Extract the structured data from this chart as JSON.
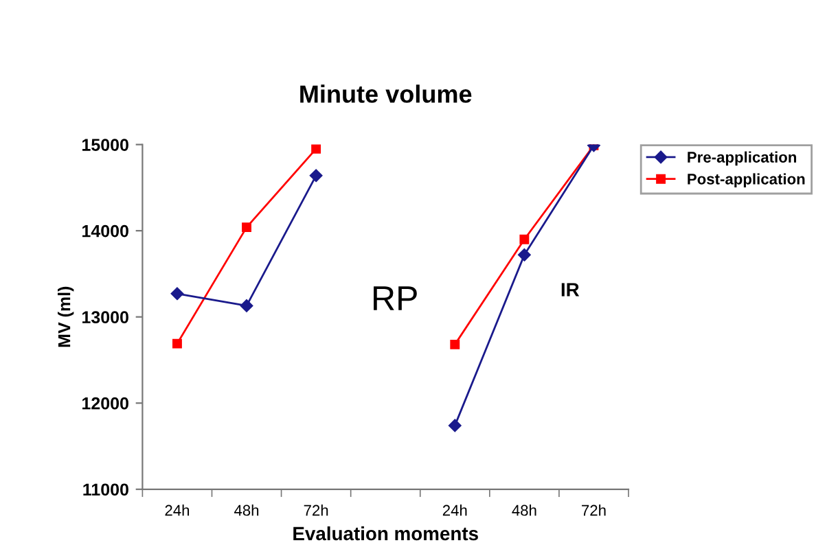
{
  "chart_data": {
    "type": "line",
    "title": "Minute volume",
    "xlabel": "Evaluation moments",
    "ylabel": "MV (ml)",
    "categories": [
      "24h",
      "48h",
      "72h",
      null,
      "24h",
      "48h",
      "72h"
    ],
    "series": [
      {
        "name": "Pre-application",
        "color": "#1a1a8c",
        "marker": "diamond",
        "values": [
          13270,
          13130,
          14640,
          null,
          11740,
          13720,
          14990
        ]
      },
      {
        "name": "Post-application",
        "color": "#ff0000",
        "marker": "square",
        "values": [
          12690,
          14040,
          14950,
          null,
          12680,
          13900,
          14990
        ]
      }
    ],
    "ylim": [
      11000,
      15000
    ],
    "yticks": [
      11000,
      12000,
      13000,
      14000,
      15000
    ],
    "annotations": [
      "RP",
      "IR"
    ],
    "grid": false,
    "legend": "top right"
  }
}
